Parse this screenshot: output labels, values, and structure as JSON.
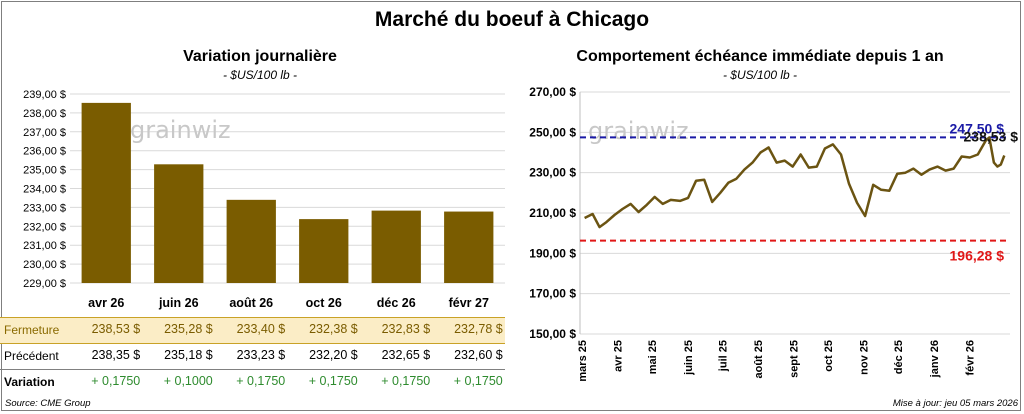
{
  "title": "Marché du boeuf à Chicago",
  "watermark": "grainwiz",
  "colors": {
    "bar": "#7a5c00",
    "line": "#6b5412",
    "max_line": "#1a1aa6",
    "min_line": "#e01818",
    "last_label": "#111111",
    "positive": "#2e8b2e"
  },
  "chart_data": [
    {
      "type": "bar",
      "title": "Variation journalière",
      "subtitle": "- $US/100 lb -",
      "categories": [
        "avr 26",
        "juin 26",
        "août 26",
        "oct 26",
        "déc 26",
        "févr 27"
      ],
      "values": [
        238.53,
        235.28,
        233.4,
        232.38,
        232.83,
        232.78
      ],
      "ylim": [
        229,
        239
      ],
      "yticks": [
        "229,00 $",
        "230,00 $",
        "231,00 $",
        "232,00 $",
        "233,00 $",
        "234,00 $",
        "235,00 $",
        "236,00 $",
        "237,00 $",
        "238,00 $",
        "239,00 $"
      ],
      "grid": true,
      "legend": "none"
    },
    {
      "type": "line",
      "title": "Comportement échéance immédiate depuis 1 an",
      "subtitle": "- $US/100 lb -",
      "x": [
        "2025-03-05",
        "2025-03-12",
        "2025-03-18",
        "2025-03-24",
        "2025-03-31",
        "2025-04-07",
        "2025-04-14",
        "2025-04-21",
        "2025-04-28",
        "2025-05-05",
        "2025-05-12",
        "2025-05-19",
        "2025-05-27",
        "2025-06-03",
        "2025-06-10",
        "2025-06-17",
        "2025-06-24",
        "2025-07-01",
        "2025-07-08",
        "2025-07-15",
        "2025-07-22",
        "2025-07-29",
        "2025-08-05",
        "2025-08-12",
        "2025-08-19",
        "2025-08-26",
        "2025-09-02",
        "2025-09-09",
        "2025-09-16",
        "2025-09-23",
        "2025-09-30",
        "2025-10-07",
        "2025-10-14",
        "2025-10-21",
        "2025-10-28",
        "2025-11-04",
        "2025-11-11",
        "2025-11-18",
        "2025-11-25",
        "2025-12-02",
        "2025-12-09",
        "2025-12-16",
        "2025-12-23",
        "2025-12-30",
        "2026-01-06",
        "2026-01-13",
        "2026-01-20",
        "2026-01-27",
        "2026-02-03",
        "2026-02-10",
        "2026-02-17",
        "2026-02-20",
        "2026-02-24",
        "2026-02-27",
        "2026-03-02",
        "2026-03-05"
      ],
      "values": [
        207.5,
        209.5,
        203.0,
        205.5,
        209.0,
        212.0,
        214.5,
        210.5,
        214.0,
        218.0,
        214.5,
        216.5,
        216.0,
        217.5,
        226.0,
        226.5,
        215.5,
        220.0,
        225.0,
        227.0,
        231.5,
        235.0,
        240.0,
        242.5,
        235.0,
        236.0,
        233.0,
        239.0,
        232.5,
        233.0,
        242.0,
        244.0,
        239.0,
        224.5,
        215.0,
        208.5,
        224.0,
        221.5,
        221.0,
        229.5,
        230.0,
        232.0,
        229.0,
        231.5,
        233.0,
        231.0,
        232.0,
        238.0,
        237.5,
        239.0,
        246.0,
        247.5,
        235.0,
        233.0,
        234.0,
        238.53
      ],
      "ylim": [
        150,
        270
      ],
      "yticks": [
        "150,00 $",
        "170,00 $",
        "190,00 $",
        "210,00 $",
        "230,00 $",
        "250,00 $",
        "270,00 $"
      ],
      "xticks": [
        "mars 25",
        "avr 25",
        "mai 25",
        "juin 25",
        "juil 25",
        "août 25",
        "sept 25",
        "oct 25",
        "nov 25",
        "déc 25",
        "janv 26",
        "févr 26"
      ],
      "xtick_dates": [
        "2025-03-01",
        "2025-04-01",
        "2025-05-01",
        "2025-06-01",
        "2025-07-01",
        "2025-08-01",
        "2025-09-01",
        "2025-10-01",
        "2025-11-01",
        "2025-12-01",
        "2026-01-01",
        "2026-02-01"
      ],
      "x_range": [
        "2025-03-01",
        "2026-03-10"
      ],
      "max": 247.5,
      "min": 196.28,
      "last": 238.53,
      "max_label": "247,50 $",
      "min_label": "196,28 $",
      "last_label": "238,53 $",
      "grid": true,
      "legend": "none"
    }
  ],
  "table": {
    "rows": [
      {
        "label": "Fermeture",
        "values": [
          "238,53  $",
          "235,28  $",
          "233,40  $",
          "232,38  $",
          "232,83  $",
          "232,78  $"
        ]
      },
      {
        "label": "Précédent",
        "values": [
          "238,35  $",
          "235,18  $",
          "233,23  $",
          "232,20  $",
          "232,65  $",
          "232,60  $"
        ]
      },
      {
        "label": "Variation",
        "values": [
          "+ 0,1750",
          "+ 0,1000",
          "+ 0,1750",
          "+ 0,1750",
          "+ 0,1750",
          "+ 0,1750"
        ]
      }
    ]
  },
  "footer": {
    "source": "Source: CME Group",
    "updated": "Mise à jour: jeu 05 mars 2026"
  }
}
